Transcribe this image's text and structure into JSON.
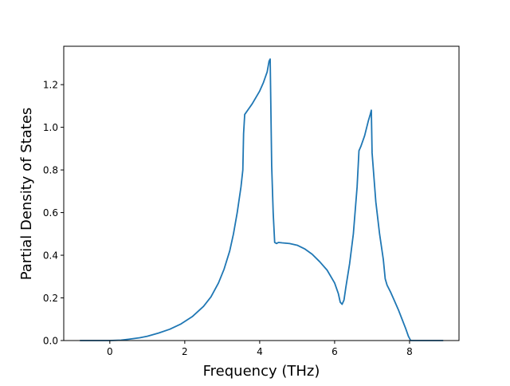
{
  "chart_data": {
    "type": "line",
    "title": "",
    "xlabel": "Frequency (THz)",
    "ylabel": "Partial Density of States",
    "xlim": [
      -1.23,
      9.32
    ],
    "ylim": [
      0.0,
      1.38
    ],
    "grid": false,
    "legend": "none",
    "xticks": [
      0,
      2,
      4,
      6,
      8
    ],
    "xtick_labels": [
      "0",
      "2",
      "4",
      "6",
      "8"
    ],
    "yticks": [
      0.0,
      0.2,
      0.4,
      0.6,
      0.8,
      1.0,
      1.2
    ],
    "ytick_labels": [
      "0.0",
      "0.2",
      "0.4",
      "0.6",
      "0.8",
      "1.0",
      "1.2"
    ],
    "series": [
      {
        "color": "#1f77b4",
        "x": [
          -0.8,
          -0.5,
          0.0,
          0.3,
          0.5,
          0.8,
          1.0,
          1.3,
          1.6,
          1.9,
          2.2,
          2.5,
          2.7,
          2.9,
          3.05,
          3.2,
          3.3,
          3.4,
          3.5,
          3.55,
          3.57,
          3.6,
          3.7,
          3.8,
          3.9,
          4.0,
          4.1,
          4.2,
          4.25,
          4.28,
          4.32,
          4.36,
          4.4,
          4.45,
          4.5,
          4.6,
          4.8,
          5.0,
          5.2,
          5.4,
          5.6,
          5.8,
          6.0,
          6.1,
          6.15,
          6.2,
          6.25,
          6.3,
          6.4,
          6.5,
          6.6,
          6.65,
          6.7,
          6.8,
          6.9,
          6.95,
          6.98,
          7.0,
          7.1,
          7.2,
          7.3,
          7.35,
          7.4,
          7.5,
          7.6,
          7.7,
          7.8,
          7.9,
          7.97,
          8.03,
          8.1,
          8.5,
          8.9
        ],
        "y": [
          0.0,
          0.0,
          0.0,
          0.002,
          0.006,
          0.013,
          0.02,
          0.035,
          0.053,
          0.078,
          0.112,
          0.16,
          0.205,
          0.27,
          0.335,
          0.42,
          0.5,
          0.6,
          0.72,
          0.8,
          0.97,
          1.06,
          1.085,
          1.11,
          1.14,
          1.17,
          1.21,
          1.26,
          1.31,
          1.32,
          0.82,
          0.6,
          0.46,
          0.455,
          0.46,
          0.458,
          0.455,
          0.447,
          0.43,
          0.405,
          0.37,
          0.33,
          0.27,
          0.22,
          0.18,
          0.17,
          0.19,
          0.25,
          0.36,
          0.5,
          0.72,
          0.89,
          0.91,
          0.96,
          1.03,
          1.06,
          1.08,
          0.88,
          0.65,
          0.5,
          0.38,
          0.29,
          0.26,
          0.225,
          0.185,
          0.145,
          0.1,
          0.055,
          0.02,
          0.0,
          0.0,
          0.0,
          0.0
        ]
      }
    ]
  }
}
